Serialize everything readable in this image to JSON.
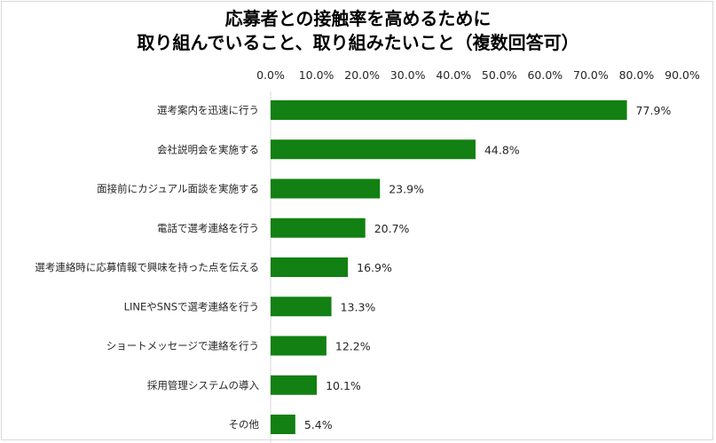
{
  "title_lines": [
    "応募者との接触率を高めるために",
    "取り組んでいること、取り組みたいこと（複数回答可）"
  ],
  "chart_data": {
    "type": "bar",
    "orientation": "horizontal",
    "title": "応募者との接触率を高めるために 取り組んでいること、取り組みたいこと（複数回答可）",
    "categories": [
      "選考案内を迅速に行う",
      "会社説明会を実施する",
      "面接前にカジュアル面談を実施する",
      "電話で選考連絡を行う",
      "選考連絡時に応募情報で興味を持った点を伝える",
      "LINEやSNSで選考連絡を行う",
      "ショートメッセージで連絡を行う",
      "採用管理システムの導入",
      "その他"
    ],
    "values": [
      77.9,
      44.8,
      23.9,
      20.7,
      16.9,
      13.3,
      12.2,
      10.1,
      5.4
    ],
    "data_labels": [
      "77.9%",
      "44.8%",
      "23.9%",
      "20.7%",
      "16.9%",
      "13.3%",
      "12.2%",
      "10.1%",
      "5.4%"
    ],
    "xlim": [
      0,
      90
    ],
    "x_ticks": [
      0,
      10,
      20,
      30,
      40,
      50,
      60,
      70,
      80,
      90
    ],
    "x_tick_labels": [
      "0.0%",
      "10.0%",
      "20.0%",
      "30.0%",
      "40.0%",
      "50.0%",
      "60.0%",
      "70.0%",
      "80.0%",
      "90.0%"
    ],
    "axis_position": "top",
    "grid": false,
    "legend": false,
    "bar_color": "#128012"
  }
}
